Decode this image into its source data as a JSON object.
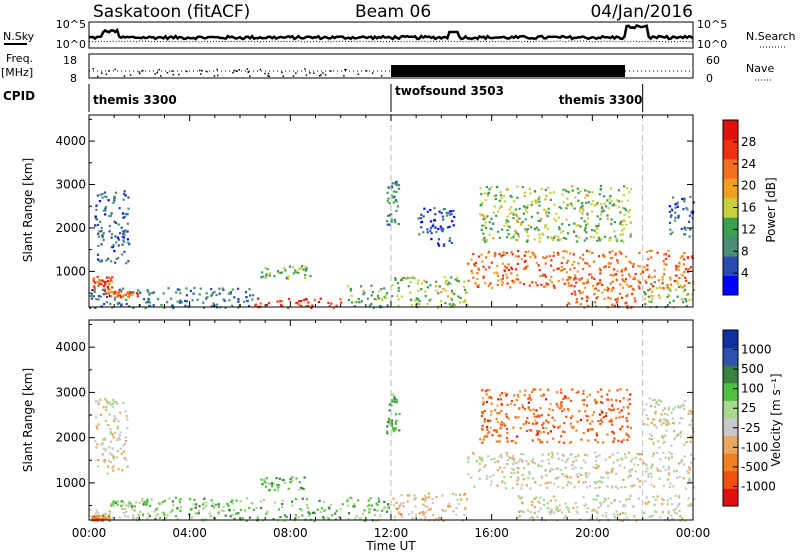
{
  "header": {
    "station": "Saskatoon (fitACF)",
    "beam": "Beam 06",
    "date": "04/Jan/2016"
  },
  "strip_labels": {
    "nsky": "N.Sky",
    "nsearch": "N.Search",
    "freq_line1": "Freq.",
    "freq_line2": "[MHz]",
    "nave": "Nave",
    "cpid": "CPID",
    "noise_ticks_left": [
      "10^5",
      "10^0"
    ],
    "noise_ticks_right": [
      "10^5",
      "10^0"
    ],
    "freq_ticks": [
      "18",
      "8"
    ],
    "nave_ticks": [
      "60",
      "0"
    ]
  },
  "cpid_segments": [
    {
      "label": "themis 3300",
      "start_hour": 0,
      "end_hour": 12
    },
    {
      "label": "twofsound 3503",
      "start_hour": 12,
      "end_hour": 22
    },
    {
      "label": "themis 3300",
      "start_hour": 22,
      "end_hour": 24
    }
  ],
  "colors": {
    "power": [
      "#0000ff",
      "#2a4bb0",
      "#4a8c78",
      "#3aa050",
      "#c8d040",
      "#f0a020",
      "#f07020",
      "#f03010",
      "#e01010"
    ],
    "velocity": [
      "#e01010",
      "#f05010",
      "#f08020",
      "#e8a860",
      "#c8c8c8",
      "#a8d890",
      "#50c040",
      "#3a8040",
      "#3050b0",
      "#1030a0"
    ],
    "ground": "#c0c0c0"
  },
  "chart_data": [
    {
      "type": "heatmap",
      "title": "",
      "ylabel": "Slant Range [km]",
      "xlabel": "",
      "xlim_hours": [
        0,
        24
      ],
      "ylim": [
        180,
        4600
      ],
      "y_ticks": [
        1000,
        2000,
        3000,
        4000
      ],
      "x_ticks": [
        "00:00",
        "04:00",
        "08:00",
        "12:00",
        "16:00",
        "20:00",
        "00:00"
      ],
      "colorbar": {
        "label": "Power [dB]",
        "ticks": [
          "4",
          "8",
          "12",
          "16",
          "20",
          "24",
          "28"
        ],
        "range": [
          0,
          30
        ]
      },
      "scatter_regions": [
        {
          "t0": 0.0,
          "t1": 1.7,
          "r0": 180,
          "r1": 650,
          "level": 1.6
        },
        {
          "t0": 0.1,
          "t1": 0.9,
          "r0": 600,
          "r1": 900,
          "level": 6.5
        },
        {
          "t0": 0.2,
          "t1": 1.6,
          "r0": 1200,
          "r1": 2900,
          "level": 1.5
        },
        {
          "t0": 0.6,
          "t1": 1.9,
          "r0": 430,
          "r1": 560,
          "level": 6
        },
        {
          "t0": 1.7,
          "t1": 6.5,
          "r0": 180,
          "r1": 650,
          "level": 2
        },
        {
          "t0": 6.5,
          "t1": 10.2,
          "r0": 180,
          "r1": 400,
          "level": 7
        },
        {
          "t0": 6.8,
          "t1": 8.8,
          "r0": 850,
          "r1": 1150,
          "level": 3.2
        },
        {
          "t0": 10.2,
          "t1": 12.0,
          "r0": 180,
          "r1": 700,
          "level": 3
        },
        {
          "t0": 11.8,
          "t1": 12.3,
          "r0": 2100,
          "r1": 3100,
          "level": 2
        },
        {
          "t0": 12.0,
          "t1": 15.0,
          "r0": 180,
          "r1": 900,
          "level": 3.5
        },
        {
          "t0": 13.0,
          "t1": 14.5,
          "r0": 1600,
          "r1": 2500,
          "level": 1
        },
        {
          "t0": 15.0,
          "t1": 24.0,
          "r0": 600,
          "r1": 1500,
          "level": 6
        },
        {
          "t0": 15.5,
          "t1": 21.5,
          "r0": 1700,
          "r1": 3000,
          "level": 3.5
        },
        {
          "t0": 19.0,
          "t1": 21.8,
          "r0": 180,
          "r1": 600,
          "level": 6
        },
        {
          "t0": 22.0,
          "t1": 24.0,
          "r0": 180,
          "r1": 800,
          "level": 3.5
        },
        {
          "t0": 23.0,
          "t1": 24.0,
          "r0": 1800,
          "r1": 2800,
          "level": 1.5
        }
      ]
    },
    {
      "type": "heatmap",
      "title": "",
      "ylabel": "Slant Range [km]",
      "xlabel": "Time UT",
      "xlim_hours": [
        0,
        24
      ],
      "ylim": [
        180,
        4600
      ],
      "y_ticks": [
        1000,
        2000,
        3000,
        4000
      ],
      "x_ticks": [
        "00:00",
        "04:00",
        "08:00",
        "12:00",
        "16:00",
        "20:00",
        "00:00"
      ],
      "colorbar": {
        "label": "Velocity [m s⁻¹]",
        "ticks": [
          "1000",
          "500",
          "100",
          "25",
          "-25",
          "-100",
          "-500",
          "-1000"
        ],
        "range": [
          -1000,
          1000
        ]
      },
      "scatter_regions": [
        {
          "t0": 0.0,
          "t1": 2.0,
          "r0": 180,
          "r1": 450,
          "level": 4.2
        },
        {
          "t0": 0.1,
          "t1": 0.8,
          "r0": 180,
          "r1": 300,
          "level": 2
        },
        {
          "t0": 0.2,
          "t1": 1.5,
          "r0": 1200,
          "r1": 2900,
          "level": 4
        },
        {
          "t0": 0.8,
          "t1": 2.4,
          "r0": 500,
          "r1": 620,
          "level": 5.5
        },
        {
          "t0": 2.0,
          "t1": 12.0,
          "r0": 180,
          "r1": 700,
          "level": 5.8
        },
        {
          "t0": 6.8,
          "t1": 8.6,
          "r0": 850,
          "r1": 1150,
          "level": 6
        },
        {
          "t0": 11.8,
          "t1": 12.3,
          "r0": 2100,
          "r1": 3000,
          "level": 6.5
        },
        {
          "t0": 12.0,
          "t1": 15.0,
          "r0": 180,
          "r1": 800,
          "level": 3.5
        },
        {
          "t0": 15.0,
          "t1": 24.0,
          "r0": 900,
          "r1": 1700,
          "level": 4
        },
        {
          "t0": 15.5,
          "t1": 21.5,
          "r0": 1900,
          "r1": 3100,
          "level": 1.5
        },
        {
          "t0": 17.0,
          "t1": 24.0,
          "r0": 180,
          "r1": 750,
          "level": 4.3
        },
        {
          "t0": 22.0,
          "t1": 24.0,
          "r0": 1800,
          "r1": 2900,
          "level": 4
        }
      ]
    }
  ]
}
